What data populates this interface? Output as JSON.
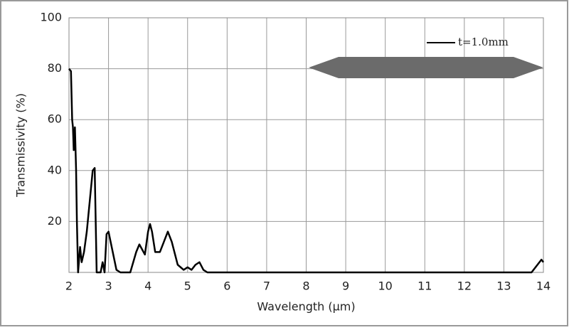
{
  "chart_data": {
    "type": "line",
    "x_label": "Wavelength (μm)",
    "y_label": "Transmissivity (%)",
    "x": [
      2.0,
      2.05,
      2.08,
      2.1,
      2.12,
      2.15,
      2.18,
      2.2,
      2.23,
      2.28,
      2.32,
      2.38,
      2.45,
      2.55,
      2.6,
      2.65,
      2.7,
      2.8,
      2.85,
      2.9,
      2.95,
      3.0,
      3.08,
      3.2,
      3.3,
      3.55,
      3.7,
      3.78,
      3.85,
      3.92,
      4.0,
      4.05,
      4.1,
      4.18,
      4.3,
      4.4,
      4.5,
      4.6,
      4.75,
      4.9,
      5.0,
      5.1,
      5.2,
      5.3,
      5.4,
      5.5,
      13.7,
      13.85,
      13.95,
      14.0
    ],
    "series": [
      {
        "name": "t=1.0mm",
        "color": "#000000",
        "values": [
          80,
          79,
          60,
          57,
          48,
          57,
          40,
          20,
          0,
          10,
          4,
          8,
          16,
          32,
          40,
          41,
          0,
          0,
          4,
          0,
          15,
          16,
          10,
          1,
          0,
          0,
          8,
          11,
          9,
          7,
          16,
          19,
          16,
          8,
          8,
          12,
          16,
          12,
          3,
          1,
          2,
          1,
          3,
          4,
          1,
          0,
          0,
          3,
          5,
          4
        ]
      }
    ],
    "xlim": [
      2,
      14
    ],
    "ylim": [
      0,
      100
    ],
    "xticks": [
      2,
      3,
      4,
      5,
      6,
      7,
      8,
      9,
      10,
      11,
      12,
      13,
      14
    ],
    "yticks": [
      20,
      40,
      60,
      80,
      100
    ],
    "grid": true,
    "legend": "top-right"
  }
}
